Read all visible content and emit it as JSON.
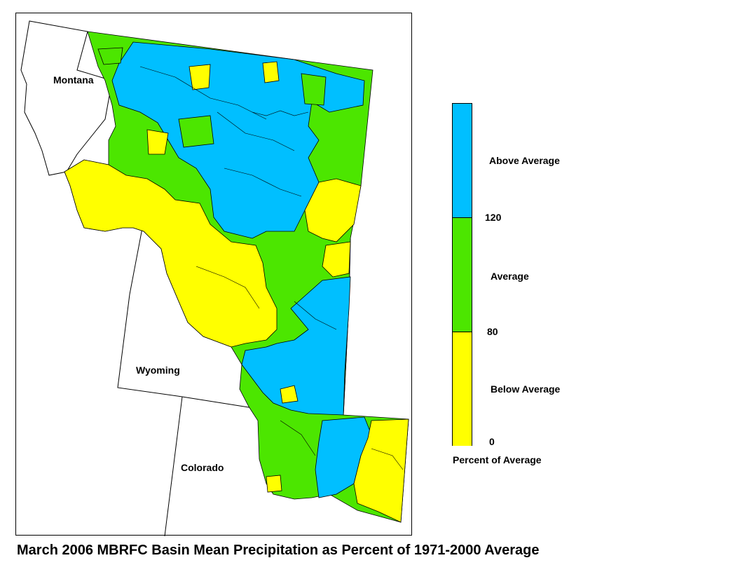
{
  "colors": {
    "above": "#00BFFF",
    "average": "#4CE600",
    "below": "#FFFF00",
    "outline": "#000000"
  },
  "states": {
    "montana": "Montana",
    "wyoming": "Wyoming",
    "colorado": "Colorado"
  },
  "legend": {
    "title": "Percent of Average",
    "categories": [
      {
        "label": "Above Average",
        "color": "#00BFFF"
      },
      {
        "label": "Average",
        "color": "#4CE600"
      },
      {
        "label": "Below Average",
        "color": "#FFFF00"
      }
    ],
    "breaks": [
      "120",
      "80",
      "0"
    ]
  },
  "caption": "March 2006 MBRFC Basin Mean Precipitation as Percent of 1971-2000 Average"
}
